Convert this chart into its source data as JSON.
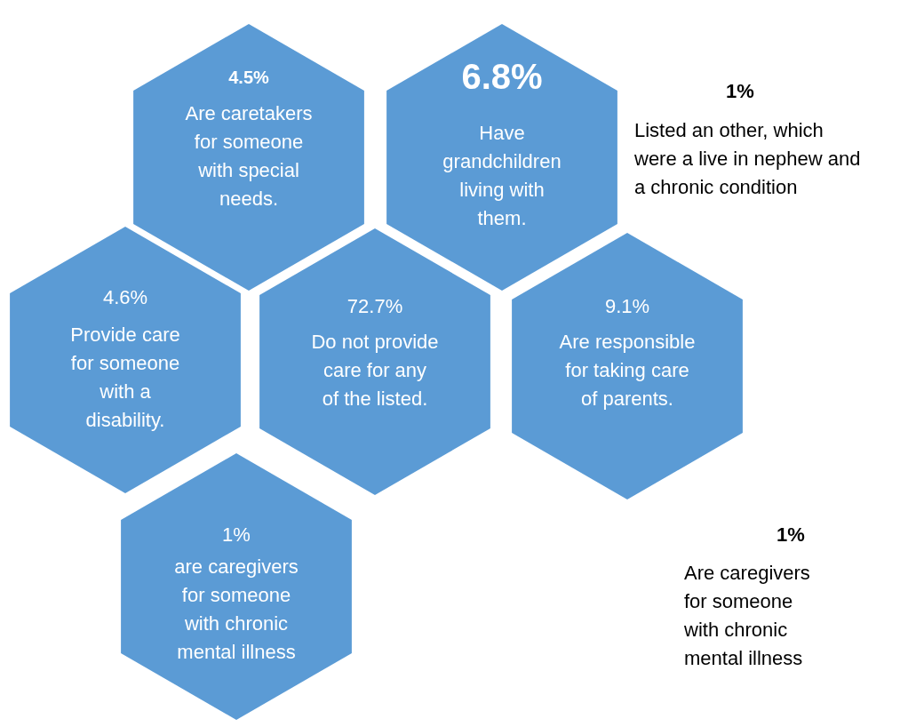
{
  "chart_data": {
    "type": "other",
    "categories": [
      "Are caretakers for someone with special needs.",
      "Have grandchildren living with them.",
      "Provide care for someone with a disability.",
      "Do not provide care for any of the listed.",
      "Are responsible for taking care of parents.",
      "are caregivers for someone with chronic mental illness"
    ],
    "values": [
      4.5,
      6.8,
      4.6,
      72.7,
      9.1,
      1
    ],
    "value_labels": [
      "4.5%",
      "6.8%",
      "4.6%",
      "72.7%",
      "9.1%",
      "1%"
    ],
    "colors": [
      "#5b9bd5",
      "#5b9bd5",
      "#5b9bd5",
      "#5b9bd5",
      "#5b9bd5",
      "#5b9bd5"
    ],
    "annotations": [
      "1%",
      "Listed an other, which were a live in nephew and a chronic condition",
      "1%",
      "Are caregivers for someone with chronic mental illness"
    ]
  }
}
